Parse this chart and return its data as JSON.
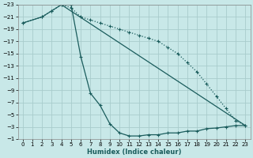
{
  "xlabel": "Humidex (Indice chaleur)",
  "background_color": "#c8e8e8",
  "grid_color": "#a8cccc",
  "line_color": "#1a5c5c",
  "xlim": [
    0,
    23
  ],
  "ylim": [
    -23,
    -1
  ],
  "xticks": [
    0,
    1,
    2,
    3,
    4,
    5,
    6,
    7,
    8,
    9,
    10,
    11,
    12,
    13,
    14,
    15,
    16,
    17,
    18,
    19,
    20,
    21,
    22,
    23
  ],
  "yticks": [
    -1,
    -3,
    -5,
    -7,
    -9,
    -11,
    -13,
    -15,
    -17,
    -19,
    -21,
    -23
  ],
  "s1x": [
    0,
    2,
    3,
    4,
    5,
    6,
    7,
    8,
    9,
    10,
    11,
    12,
    13,
    14,
    15,
    16,
    17,
    18,
    19,
    20,
    21,
    22,
    23
  ],
  "s1y": [
    -20,
    -21,
    -22,
    -23,
    -23,
    -14.5,
    -8.5,
    -6.5,
    -3.5,
    -2,
    -1.5,
    -1.5,
    -1.7,
    -1.7,
    -2,
    -2,
    -2.3,
    -2.3,
    -2.7,
    -2.8,
    -3,
    -3.2,
    -3.2
  ],
  "s2x": [
    0,
    2,
    3,
    4,
    5,
    6,
    7,
    8,
    9,
    10,
    11,
    12,
    13,
    14,
    15,
    16,
    17,
    18,
    19,
    20,
    21,
    22,
    23
  ],
  "s2y": [
    -20,
    -21,
    -22,
    -23,
    -22.5,
    -21,
    -20.5,
    -20,
    -19.5,
    -19,
    -18.5,
    -18,
    -17.5,
    -17,
    -16,
    -15,
    -13.5,
    -12,
    -10,
    -8,
    -6,
    -4,
    -3.2
  ],
  "s3x": [
    4,
    23
  ],
  "s3y": [
    -23,
    -3.2
  ]
}
